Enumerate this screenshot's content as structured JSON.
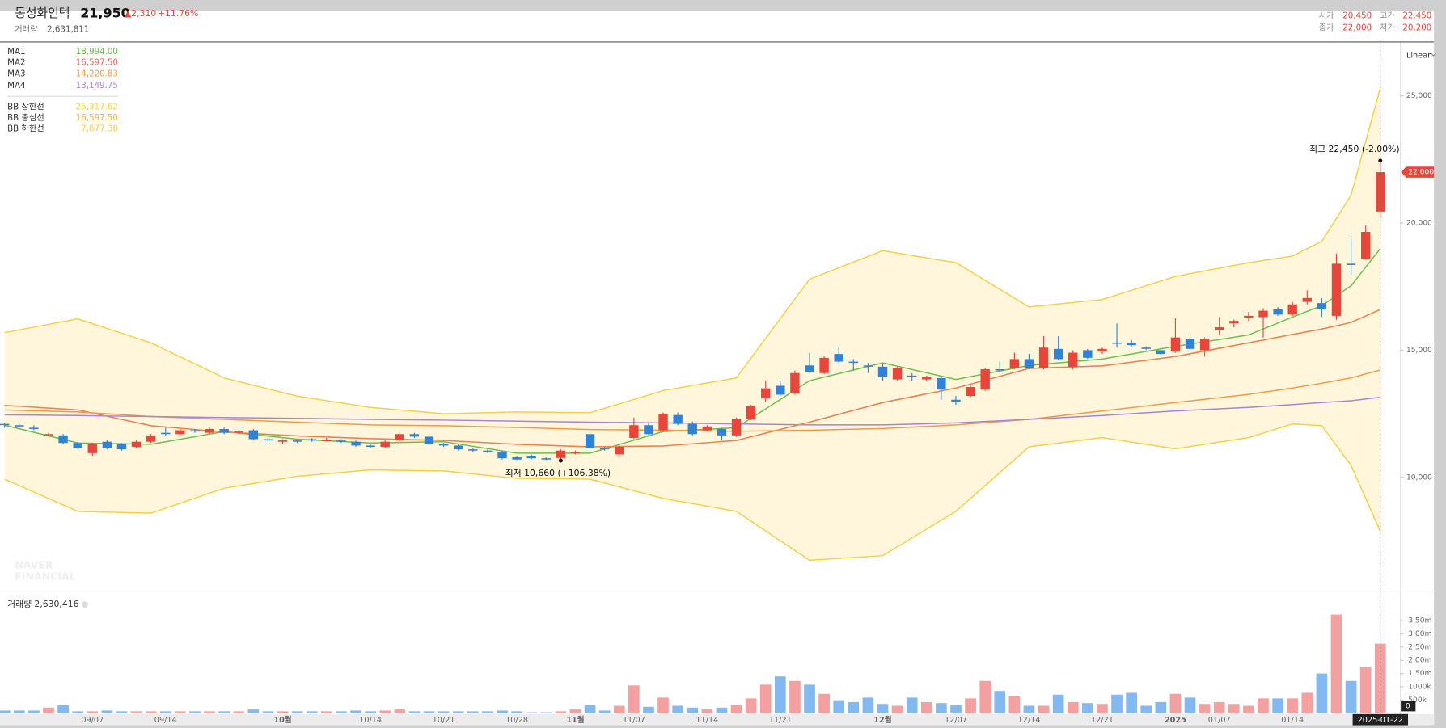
{
  "header": {
    "name": "동성화인텍",
    "price": "21,950",
    "change": "▲2,310",
    "change_rate": "+11.76%",
    "volume_label": "거래량",
    "volume": "2,631,811",
    "ohlc": [
      {
        "label": "시가",
        "value": "20,450"
      },
      {
        "label": "고가",
        "value": "22,450"
      },
      {
        "label": "종가",
        "value": "22,000"
      },
      {
        "label": "저가",
        "value": "20,200"
      }
    ]
  },
  "watermark": [
    "NAVER",
    "FINANCIAL"
  ],
  "chart_data": {
    "type": "candlestick",
    "scale_label": "Linear",
    "up_color": "#e9453a",
    "down_color": "#2f82d8",
    "categories": [
      null,
      null,
      null,
      null,
      null,
      null,
      "09/07",
      null,
      null,
      null,
      null,
      "09/14",
      null,
      null,
      null,
      null,
      null,
      null,
      null,
      "10월",
      null,
      null,
      null,
      null,
      null,
      "10/14",
      null,
      null,
      null,
      null,
      "10/21",
      null,
      null,
      null,
      null,
      "10/28",
      null,
      null,
      null,
      "11월",
      null,
      null,
      null,
      "11/07",
      null,
      null,
      null,
      null,
      "11/14",
      null,
      null,
      null,
      null,
      "11/21",
      null,
      null,
      null,
      null,
      null,
      null,
      "12월",
      null,
      null,
      null,
      null,
      "12/07",
      null,
      null,
      null,
      null,
      "12/14",
      null,
      null,
      null,
      null,
      "12/21",
      null,
      null,
      null,
      null,
      "2025",
      null,
      null,
      "01/07",
      null,
      null,
      null,
      null,
      "01/14",
      null,
      null,
      null,
      null,
      null,
      "2025-01-22"
    ],
    "crosshair_index": 94,
    "open": [
      12100,
      12050,
      11950,
      11650,
      11650,
      11350,
      10950,
      11400,
      11300,
      11200,
      11400,
      11750,
      11700,
      11850,
      11750,
      11900,
      11750,
      11850,
      11500,
      11400,
      11450,
      11500,
      11420,
      11450,
      11400,
      11250,
      11200,
      11450,
      11700,
      11600,
      11300,
      11250,
      11100,
      11050,
      11000,
      10800,
      10850,
      10750,
      10760,
      10950,
      11700,
      11150,
      10900,
      11550,
      12050,
      11850,
      12450,
      12100,
      11850,
      11900,
      11650,
      12300,
      13100,
      13600,
      13300,
      14400,
      14100,
      14850,
      14550,
      14400,
      14350,
      13850,
      14000,
      13850,
      13900,
      13050,
      13200,
      13450,
      14250,
      14300,
      14650,
      14300,
      15050,
      14350,
      15000,
      14950,
      15300,
      15300,
      15100,
      15000,
      14950,
      15450,
      15000,
      15800,
      16050,
      16250,
      16300,
      16600,
      16400,
      16900,
      16850,
      16350,
      18400,
      18600,
      20450
    ],
    "high": [
      12150,
      12100,
      12050,
      11750,
      11700,
      11400,
      11350,
      11450,
      11350,
      11450,
      11700,
      11950,
      11900,
      11900,
      11950,
      11950,
      11850,
      11900,
      11550,
      11500,
      11500,
      11550,
      11550,
      11500,
      11450,
      11300,
      11450,
      11750,
      11750,
      11650,
      11350,
      11300,
      11150,
      11100,
      11050,
      10850,
      10900,
      10800,
      11100,
      11050,
      11750,
      11200,
      11250,
      12350,
      12150,
      12550,
      12550,
      12200,
      12050,
      11950,
      12350,
      12850,
      13800,
      13800,
      14200,
      14900,
      14750,
      15100,
      14650,
      14500,
      14450,
      14350,
      14100,
      14000,
      14000,
      13200,
      13600,
      14300,
      14550,
      14900,
      14850,
      15550,
      15550,
      15000,
      15050,
      15100,
      16050,
      15400,
      15150,
      15100,
      16250,
      15700,
      15500,
      16300,
      16200,
      16500,
      16650,
      16700,
      16900,
      17350,
      17050,
      18800,
      19400,
      19900,
      22450
    ],
    "low": [
      11950,
      11950,
      11850,
      11600,
      11300,
      11100,
      10850,
      11100,
      11050,
      11150,
      11350,
      11650,
      11650,
      11750,
      11700,
      11700,
      11700,
      11450,
      11400,
      11300,
      11350,
      11400,
      11400,
      11350,
      11200,
      11150,
      11150,
      11400,
      11550,
      11250,
      11200,
      11050,
      11000,
      10950,
      10700,
      10680,
      10700,
      10680,
      10660,
      10900,
      11100,
      11050,
      10750,
      11500,
      11650,
      11800,
      12050,
      11650,
      11800,
      11450,
      11600,
      12250,
      12950,
      13200,
      13250,
      14100,
      14050,
      14500,
      14200,
      14100,
      13800,
      13800,
      13800,
      13800,
      13050,
      12850,
      13150,
      13400,
      14150,
      14250,
      14250,
      14250,
      14600,
      14250,
      14650,
      14850,
      15100,
      15150,
      15000,
      14800,
      14900,
      15000,
      14750,
      15600,
      15900,
      16150,
      15500,
      16350,
      16350,
      16800,
      16300,
      16200,
      17950,
      18550,
      20200
    ],
    "close": [
      12050,
      12000,
      11900,
      11700,
      11350,
      11150,
      11300,
      11150,
      11100,
      11400,
      11650,
      11700,
      11850,
      11800,
      11900,
      11750,
      11800,
      11500,
      11450,
      11450,
      11400,
      11450,
      11480,
      11400,
      11250,
      11200,
      11400,
      11700,
      11600,
      11300,
      11250,
      11100,
      11050,
      11000,
      10750,
      10700,
      10750,
      10700,
      11050,
      11000,
      11150,
      11100,
      11200,
      12050,
      11700,
      12500,
      12100,
      11700,
      12000,
      11650,
      12300,
      12800,
      13500,
      13250,
      14100,
      14150,
      14700,
      14550,
      14500,
      14350,
      13950,
      14300,
      13950,
      13950,
      13450,
      12950,
      13550,
      14250,
      14200,
      14650,
      14300,
      15100,
      14650,
      14900,
      14700,
      15050,
      15250,
      15200,
      15050,
      14850,
      15500,
      15050,
      15450,
      15900,
      16150,
      16350,
      16550,
      16400,
      16800,
      17050,
      16600,
      18400,
      18350,
      19650,
      22000
    ],
    "ylim": [
      5544,
      27100
    ],
    "yticks": [
      {
        "value": 10000,
        "label": "10,000"
      },
      {
        "value": 15000,
        "label": "15,000"
      },
      {
        "value": 20000,
        "label": "20,000"
      },
      {
        "value": 25000,
        "label": "25,000"
      }
    ],
    "price_tag": {
      "value": 22000,
      "label": "22,000"
    },
    "x": [
      0,
      5,
      10,
      15,
      20,
      25,
      30,
      35,
      40,
      45,
      50,
      55,
      60,
      65,
      70,
      75,
      80,
      85,
      88,
      90,
      92,
      94
    ],
    "band_fill": "#fff6dc",
    "series": [
      {
        "name": "MA1",
        "color": "#6cbf4a",
        "last_label": "18,994.00",
        "values": [
          12050,
          11350,
          11300,
          11800,
          11500,
          11350,
          11400,
          10950,
          10950,
          11800,
          11950,
          13800,
          14500,
          13850,
          14400,
          14650,
          15150,
          15600,
          16300,
          16750,
          17530,
          18994
        ]
      },
      {
        "name": "MA2",
        "color": "#e8664f",
        "last_label": "16,597.50",
        "values": [
          12830,
          12650,
          12030,
          11780,
          11630,
          11520,
          11450,
          11300,
          11200,
          11230,
          11450,
          12170,
          12940,
          13510,
          14280,
          14380,
          14750,
          15290,
          15620,
          15830,
          16090,
          16597.5
        ]
      },
      {
        "name": "MA3",
        "color": "#f09a45",
        "last_label": "14,220.83",
        "values": [
          12650,
          12570,
          12390,
          12280,
          12170,
          12060,
          12030,
          11960,
          11880,
          11850,
          11810,
          11850,
          11920,
          12060,
          12280,
          12610,
          12940,
          13260,
          13510,
          13700,
          13910,
          14220.83
        ]
      },
      {
        "name": "MA4",
        "color": "#a784d8",
        "last_label": "13,149.75",
        "values": [
          12460,
          12430,
          12390,
          12350,
          12320,
          12280,
          12250,
          12210,
          12170,
          12140,
          12100,
          12060,
          12060,
          12140,
          12280,
          12430,
          12610,
          12750,
          12860,
          12940,
          13010,
          13149.75
        ]
      },
      {
        "name": "BB 상한선",
        "color": "#f5cf45",
        "last_label": "25,317.62",
        "values": [
          15690,
          16230,
          15290,
          13910,
          13190,
          12750,
          12500,
          12570,
          12540,
          13410,
          13910,
          17790,
          18910,
          18440,
          16700,
          16990,
          17900,
          18440,
          18700,
          19280,
          21090,
          25317.62
        ]
      },
      {
        "name": "BB 중심선",
        "color": "#f0b040",
        "last_label": "16,597.50",
        "values": [
          12830,
          12650,
          12030,
          11780,
          11630,
          11520,
          11450,
          11300,
          11200,
          11230,
          11450,
          12170,
          12940,
          13510,
          14280,
          14380,
          14750,
          15290,
          15620,
          15830,
          16090,
          16597.5
        ]
      },
      {
        "name": "BB 하한선",
        "color": "#f5cf45",
        "last_label": "7,877.38",
        "values": [
          9928,
          8660,
          8590,
          9570,
          10040,
          10290,
          10250,
          9960,
          9928,
          9170,
          8660,
          6740,
          6920,
          8660,
          11200,
          11560,
          11120,
          11560,
          12100,
          12030,
          10470,
          7877.38
        ]
      }
    ],
    "annotations": [
      {
        "text": "최고 22,450 (-2.00%)",
        "index": 94,
        "value": 22450
      },
      {
        "text": "최저 10,660 (+106.38%)",
        "index": 38,
        "value": 10660
      }
    ],
    "volume": {
      "title": "거래량 2,630,416",
      "up_color": "#f4a0a0",
      "down_color": "#84b8f0",
      "ylim": [
        0,
        4600000
      ],
      "yticks": [
        {
          "value": 500000,
          "label": "500k"
        },
        {
          "value": 1000000,
          "label": "1000k"
        },
        {
          "value": 1500000,
          "label": "1.50m"
        },
        {
          "value": 2000000,
          "label": "2.00m"
        },
        {
          "value": 2500000,
          "label": "2.50m"
        },
        {
          "value": 3000000,
          "label": "3.00m"
        },
        {
          "value": 3500000,
          "label": "3.50m"
        }
      ],
      "cursor_value": 0,
      "values": [
        100000,
        100000,
        100000,
        210000,
        310000,
        70000,
        70000,
        100000,
        70000,
        70000,
        70000,
        70000,
        70000,
        70000,
        70000,
        70000,
        70000,
        140000,
        70000,
        70000,
        70000,
        70000,
        70000,
        70000,
        100000,
        70000,
        100000,
        140000,
        70000,
        70000,
        70000,
        70000,
        70000,
        70000,
        100000,
        70000,
        35000,
        35000,
        70000,
        140000,
        310000,
        100000,
        280000,
        1050000,
        240000,
        590000,
        280000,
        210000,
        140000,
        210000,
        310000,
        560000,
        1080000,
        1390000,
        1220000,
        1080000,
        730000,
        490000,
        420000,
        590000,
        350000,
        280000,
        590000,
        420000,
        380000,
        310000,
        560000,
        1220000,
        840000,
        660000,
        280000,
        280000,
        700000,
        420000,
        380000,
        350000,
        700000,
        770000,
        280000,
        420000,
        730000,
        590000,
        350000,
        420000,
        350000,
        280000,
        560000,
        560000,
        560000,
        770000,
        1500000,
        3730000,
        1220000,
        1740000,
        2630416
      ]
    }
  }
}
